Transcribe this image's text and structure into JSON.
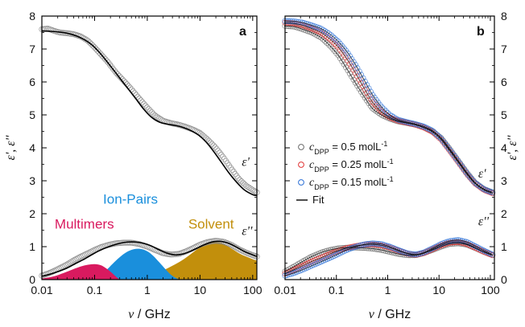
{
  "x_axis_label_symbol": "ν",
  "x_axis_label_unit": " / GHz",
  "y_axis_label": "ε', ε''",
  "x_tick_labels": [
    "0.01",
    "0.1",
    "1",
    "10",
    "100"
  ],
  "y_tick_labels": [
    "0",
    "1",
    "2",
    "3",
    "4",
    "5",
    "6",
    "7",
    "8"
  ],
  "colors": {
    "multimers": "#d91a5f",
    "ion_pairs": "#1a8fdc",
    "solvent": "#c28f0c",
    "fit": "#000000",
    "c05": "#6b6b6b",
    "c025": "#e03535",
    "c015": "#2b6fd6"
  },
  "chart_data": [
    {
      "panel": "a",
      "type": "line",
      "xscale": "log",
      "xlim": [
        0.01,
        120
      ],
      "ylim": [
        0,
        8
      ],
      "curve_labels": {
        "eps_prime": "ε'",
        "eps_double_prime": "ε''"
      },
      "component_labels": {
        "multimers": "Multimers",
        "ion_pairs": "Ion-Pairs",
        "solvent": "Solvent"
      },
      "series": [
        {
          "key": "eps_prime_data",
          "style": "markers",
          "x": [
            0.01,
            0.013,
            0.017,
            0.022,
            0.03,
            0.04,
            0.055,
            0.075,
            0.1,
            0.13,
            0.18,
            0.25,
            0.35,
            0.5,
            0.7,
            1.0,
            1.4,
            2.0,
            2.8,
            4.0,
            5.5,
            7.5,
            10,
            14,
            20,
            28,
            40,
            55,
            75,
            100,
            120
          ],
          "y": [
            7.6,
            7.62,
            7.55,
            7.5,
            7.48,
            7.45,
            7.38,
            7.25,
            7.05,
            6.85,
            6.6,
            6.3,
            6.05,
            5.78,
            5.5,
            5.22,
            4.98,
            4.82,
            4.75,
            4.7,
            4.63,
            4.55,
            4.45,
            4.25,
            4.0,
            3.7,
            3.35,
            3.05,
            2.85,
            2.72,
            2.65
          ]
        },
        {
          "key": "eps_prime_fit",
          "style": "line",
          "x": [
            0.01,
            0.014,
            0.02,
            0.03,
            0.045,
            0.065,
            0.09,
            0.12,
            0.16,
            0.22,
            0.3,
            0.42,
            0.6,
            0.85,
            1.2,
            1.7,
            2.4,
            3.4,
            4.8,
            6.8,
            9.5,
            13,
            18,
            25,
            35,
            50,
            70,
            100,
            120
          ],
          "y": [
            7.55,
            7.54,
            7.52,
            7.48,
            7.4,
            7.28,
            7.12,
            6.92,
            6.68,
            6.4,
            6.12,
            5.82,
            5.5,
            5.18,
            4.93,
            4.78,
            4.72,
            4.68,
            4.62,
            4.52,
            4.38,
            4.18,
            3.9,
            3.58,
            3.25,
            2.95,
            2.72,
            2.58,
            2.55
          ]
        },
        {
          "key": "eps_double_prime_data",
          "style": "markers",
          "x": [
            0.01,
            0.013,
            0.017,
            0.022,
            0.03,
            0.04,
            0.055,
            0.075,
            0.1,
            0.13,
            0.18,
            0.25,
            0.35,
            0.5,
            0.7,
            1.0,
            1.4,
            2.0,
            2.8,
            4.0,
            5.5,
            7.5,
            10,
            14,
            20,
            28,
            40,
            55,
            75,
            100,
            120
          ],
          "y": [
            0.12,
            0.18,
            0.26,
            0.35,
            0.46,
            0.58,
            0.7,
            0.8,
            0.9,
            0.98,
            1.05,
            1.1,
            1.12,
            1.12,
            1.08,
            1.0,
            0.9,
            0.8,
            0.76,
            0.78,
            0.86,
            0.96,
            1.06,
            1.14,
            1.18,
            1.15,
            1.05,
            0.92,
            0.82,
            0.74,
            0.7
          ]
        },
        {
          "key": "eps_double_prime_fit",
          "style": "line",
          "x": [
            0.01,
            0.014,
            0.02,
            0.03,
            0.045,
            0.065,
            0.09,
            0.12,
            0.16,
            0.22,
            0.3,
            0.42,
            0.6,
            0.85,
            1.2,
            1.7,
            2.4,
            3.4,
            4.8,
            6.8,
            9.5,
            13,
            18,
            25,
            35,
            50,
            70,
            100,
            120
          ],
          "y": [
            0.1,
            0.16,
            0.24,
            0.35,
            0.5,
            0.63,
            0.76,
            0.87,
            0.96,
            1.04,
            1.1,
            1.14,
            1.14,
            1.1,
            1.02,
            0.9,
            0.8,
            0.75,
            0.78,
            0.87,
            0.98,
            1.08,
            1.15,
            1.16,
            1.1,
            0.98,
            0.85,
            0.75,
            0.7
          ]
        },
        {
          "key": "multimers",
          "style": "area",
          "x": [
            0.01,
            0.013,
            0.017,
            0.022,
            0.03,
            0.04,
            0.055,
            0.075,
            0.1,
            0.13,
            0.16,
            0.2,
            0.25,
            0.3
          ],
          "y": [
            0.03,
            0.06,
            0.1,
            0.16,
            0.24,
            0.32,
            0.4,
            0.45,
            0.47,
            0.44,
            0.36,
            0.24,
            0.1,
            0.0
          ]
        },
        {
          "key": "ion_pairs",
          "style": "area",
          "x": [
            0.08,
            0.1,
            0.13,
            0.17,
            0.22,
            0.3,
            0.4,
            0.55,
            0.75,
            1.0,
            1.3,
            1.7,
            2.2,
            2.8,
            3.5,
            4.2
          ],
          "y": [
            0.0,
            0.06,
            0.15,
            0.3,
            0.48,
            0.68,
            0.83,
            0.92,
            0.93,
            0.86,
            0.72,
            0.52,
            0.32,
            0.15,
            0.05,
            0.0
          ]
        },
        {
          "key": "solvent",
          "style": "area",
          "x": [
            0.4,
            0.6,
            0.9,
            1.3,
            2.0,
            3.0,
            4.5,
            6.5,
            9.0,
            12,
            16,
            20,
            25,
            30,
            40,
            55,
            75,
            100,
            120
          ],
          "y": [
            0.0,
            0.05,
            0.1,
            0.17,
            0.28,
            0.42,
            0.58,
            0.76,
            0.93,
            1.05,
            1.12,
            1.14,
            1.12,
            1.06,
            0.94,
            0.8,
            0.7,
            0.62,
            0.58
          ]
        }
      ]
    },
    {
      "panel": "b",
      "type": "scatter",
      "xscale": "log",
      "xlim": [
        0.01,
        120
      ],
      "ylim": [
        0,
        8
      ],
      "curve_labels": {
        "eps_prime": "ε'",
        "eps_double_prime": "ε''"
      },
      "legend": {
        "entries": [
          {
            "symbol": "c",
            "subscript": "DPP",
            "text": " = 0.5 molL",
            "superscript": "-1",
            "colorKey": "c05"
          },
          {
            "symbol": "c",
            "subscript": "DPP",
            "text": " = 0.25 molL",
            "superscript": "-1",
            "colorKey": "c025"
          },
          {
            "symbol": "c",
            "subscript": "DPP",
            "text": " = 0.15 molL",
            "superscript": "-1",
            "colorKey": "c015"
          }
        ],
        "fit_label": "Fit",
        "placement": "center-left"
      },
      "series": [
        {
          "name": "cDPP = 0.5 molL-1",
          "colorKey": "c05",
          "part": "eps_prime",
          "x": [
            0.01,
            0.015,
            0.022,
            0.033,
            0.05,
            0.075,
            0.11,
            0.16,
            0.24,
            0.35,
            0.5,
            0.75,
            1.1,
            1.6,
            2.4,
            3.5,
            5.0,
            7.5,
            11,
            16,
            24,
            35,
            50,
            75,
            110
          ],
          "y": [
            7.7,
            7.68,
            7.6,
            7.5,
            7.35,
            7.1,
            6.8,
            6.4,
            5.95,
            5.55,
            5.2,
            5.0,
            4.88,
            4.8,
            4.75,
            4.7,
            4.62,
            4.5,
            4.3,
            3.98,
            3.6,
            3.25,
            2.95,
            2.75,
            2.65
          ]
        },
        {
          "name": "cDPP = 0.25 molL-1",
          "colorKey": "c025",
          "part": "eps_prime",
          "x": [
            0.01,
            0.015,
            0.022,
            0.033,
            0.05,
            0.075,
            0.11,
            0.16,
            0.24,
            0.35,
            0.5,
            0.75,
            1.1,
            1.6,
            2.4,
            3.5,
            5.0,
            7.5,
            11,
            16,
            24,
            35,
            50,
            75,
            110
          ],
          "y": [
            7.8,
            7.78,
            7.72,
            7.62,
            7.5,
            7.3,
            7.05,
            6.7,
            6.25,
            5.8,
            5.4,
            5.1,
            4.92,
            4.82,
            4.76,
            4.7,
            4.62,
            4.48,
            4.25,
            3.92,
            3.55,
            3.2,
            2.92,
            2.72,
            2.62
          ]
        },
        {
          "name": "cDPP = 0.15 molL-1",
          "colorKey": "c015",
          "part": "eps_prime",
          "x": [
            0.01,
            0.015,
            0.022,
            0.033,
            0.05,
            0.075,
            0.11,
            0.16,
            0.24,
            0.35,
            0.5,
            0.75,
            1.1,
            1.6,
            2.4,
            3.5,
            5.0,
            7.5,
            11,
            16,
            24,
            35,
            50,
            75,
            110
          ],
          "y": [
            7.85,
            7.84,
            7.8,
            7.72,
            7.62,
            7.45,
            7.22,
            6.92,
            6.5,
            6.05,
            5.62,
            5.25,
            5.0,
            4.85,
            4.78,
            4.72,
            4.65,
            4.52,
            4.28,
            3.95,
            3.58,
            3.22,
            2.94,
            2.74,
            2.64
          ]
        },
        {
          "name": "cDPP = 0.5 molL-1",
          "colorKey": "c05",
          "part": "eps_double_prime",
          "x": [
            0.01,
            0.015,
            0.022,
            0.033,
            0.05,
            0.075,
            0.11,
            0.16,
            0.24,
            0.35,
            0.5,
            0.75,
            1.1,
            1.6,
            2.4,
            3.5,
            5.0,
            7.5,
            11,
            16,
            24,
            35,
            50,
            75,
            110
          ],
          "y": [
            0.25,
            0.4,
            0.55,
            0.7,
            0.82,
            0.9,
            0.95,
            0.97,
            0.97,
            0.96,
            0.94,
            0.9,
            0.84,
            0.78,
            0.74,
            0.74,
            0.8,
            0.9,
            1.0,
            1.08,
            1.1,
            1.06,
            0.96,
            0.84,
            0.74
          ]
        },
        {
          "name": "cDPP = 0.25 molL-1",
          "colorKey": "c025",
          "part": "eps_double_prime",
          "x": [
            0.01,
            0.015,
            0.022,
            0.033,
            0.05,
            0.075,
            0.11,
            0.16,
            0.24,
            0.35,
            0.5,
            0.75,
            1.1,
            1.6,
            2.4,
            3.5,
            5.0,
            7.5,
            11,
            16,
            24,
            35,
            50,
            75,
            110
          ],
          "y": [
            0.18,
            0.3,
            0.42,
            0.55,
            0.66,
            0.78,
            0.88,
            0.96,
            1.02,
            1.06,
            1.07,
            1.04,
            0.97,
            0.88,
            0.79,
            0.75,
            0.8,
            0.92,
            1.04,
            1.12,
            1.14,
            1.08,
            0.97,
            0.84,
            0.74
          ]
        },
        {
          "name": "cDPP = 0.15 molL-1",
          "colorKey": "c015",
          "part": "eps_double_prime",
          "x": [
            0.01,
            0.015,
            0.022,
            0.033,
            0.05,
            0.075,
            0.11,
            0.16,
            0.24,
            0.35,
            0.5,
            0.75,
            1.1,
            1.6,
            2.4,
            3.5,
            5.0,
            7.5,
            11,
            16,
            24,
            35,
            50,
            75,
            110
          ],
          "y": [
            0.12,
            0.2,
            0.3,
            0.42,
            0.54,
            0.66,
            0.78,
            0.9,
            1.0,
            1.07,
            1.1,
            1.08,
            1.0,
            0.9,
            0.8,
            0.76,
            0.82,
            0.95,
            1.08,
            1.17,
            1.2,
            1.14,
            1.02,
            0.88,
            0.76
          ]
        }
      ]
    }
  ]
}
